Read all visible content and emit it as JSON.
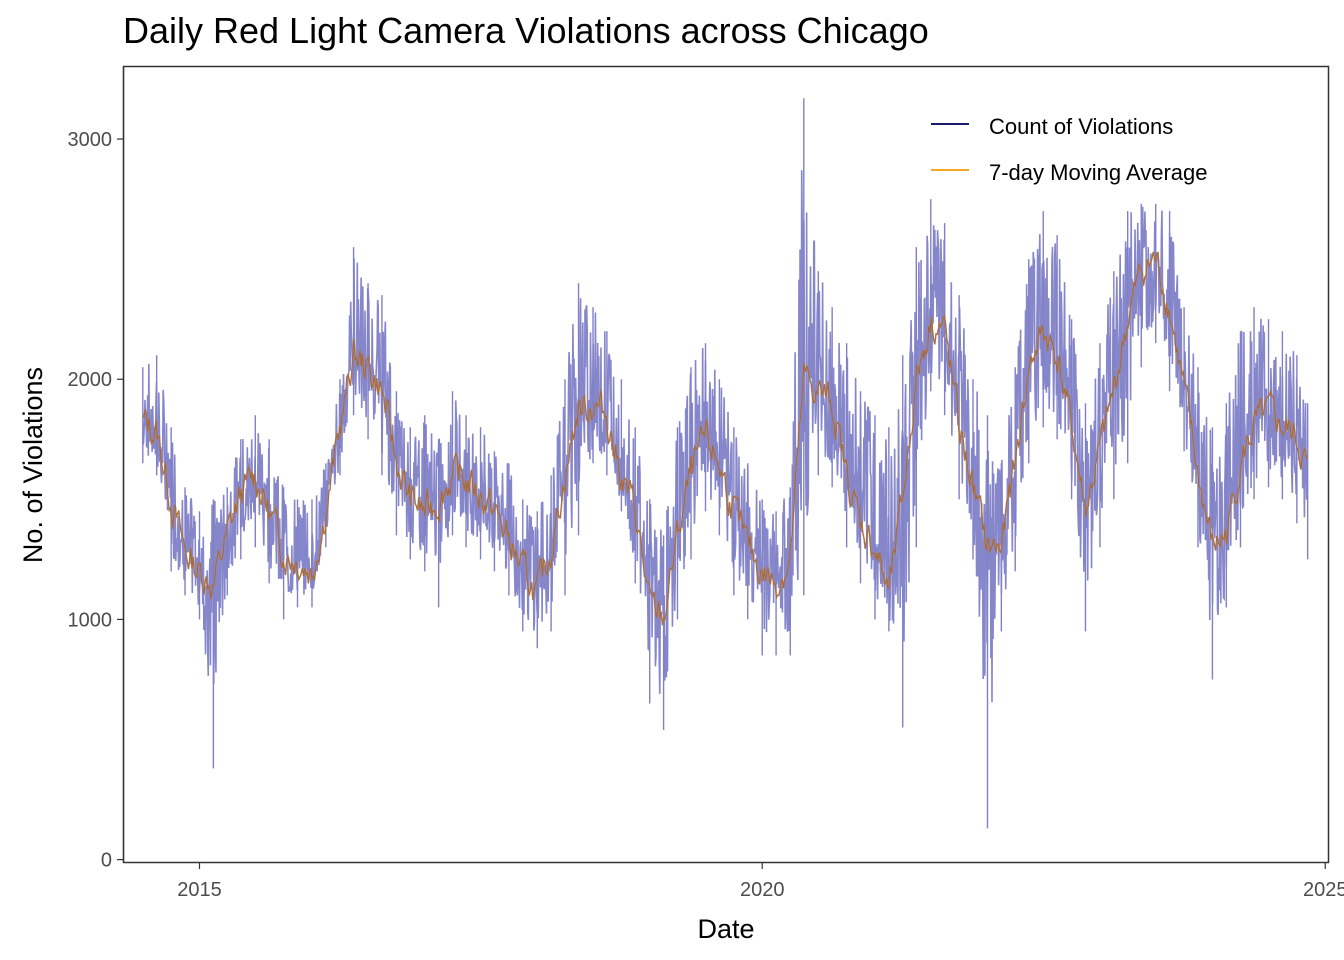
{
  "chart_data": {
    "type": "line",
    "title": "Daily Red Light Camera Violations across Chicago",
    "xlabel": "Date",
    "ylabel": "No. of Violations",
    "xlim": [
      "2014-05-01",
      "2025-01-10"
    ],
    "ylim": [
      -10,
      3300
    ],
    "x_ticks": [
      "2015",
      "2020",
      "2025"
    ],
    "y_ticks": [
      0,
      1000,
      2000,
      3000
    ],
    "grid": false,
    "legend_position": "top-right",
    "colors": {
      "count": "#8080c8",
      "count_legend": "#1a1a6e",
      "average": "#f5a623",
      "average_overlay": "#8b5a50"
    },
    "series": [
      {
        "name": "Count of Violations",
        "x": [
          "2014-07-01",
          "2014-08-15",
          "2014-10-01",
          "2014-11-15",
          "2015-01-01",
          "2015-02-15",
          "2015-04-01",
          "2015-05-15",
          "2015-07-01",
          "2015-08-15",
          "2015-10-01",
          "2015-11-15",
          "2016-01-01",
          "2016-02-15",
          "2016-04-01",
          "2016-05-15",
          "2016-07-01",
          "2016-08-15",
          "2016-10-01",
          "2016-11-15",
          "2017-01-01",
          "2017-02-15",
          "2017-04-01",
          "2017-05-15",
          "2017-07-01",
          "2017-08-15",
          "2017-10-01",
          "2017-11-15",
          "2018-01-01",
          "2018-02-15",
          "2018-04-01",
          "2018-05-15",
          "2018-07-01",
          "2018-08-15",
          "2018-10-01",
          "2018-11-15",
          "2019-01-01",
          "2019-02-15",
          "2019-04-01",
          "2019-05-15",
          "2019-07-01",
          "2019-08-15",
          "2019-10-01",
          "2019-11-15",
          "2020-01-01",
          "2020-02-15",
          "2020-04-01",
          "2020-05-15",
          "2020-07-01",
          "2020-08-15",
          "2020-10-01",
          "2020-11-15",
          "2021-01-01",
          "2021-02-15",
          "2021-04-01",
          "2021-05-15",
          "2021-07-01",
          "2021-08-15",
          "2021-10-01",
          "2021-11-15",
          "2022-01-01",
          "2022-02-15",
          "2022-04-01",
          "2022-05-15",
          "2022-07-01",
          "2022-08-15",
          "2022-10-01",
          "2022-11-15",
          "2023-01-01",
          "2023-02-15",
          "2023-04-01",
          "2023-05-15",
          "2023-07-01",
          "2023-08-15",
          "2023-10-01",
          "2023-11-15",
          "2024-01-01",
          "2024-02-15",
          "2024-04-01",
          "2024-05-15",
          "2024-07-01",
          "2024-08-15",
          "2024-10-01",
          "2024-11-05"
        ],
        "min": [
          1650,
          1600,
          1200,
          1100,
          1000,
          380,
          1100,
          1250,
          1300,
          1150,
          1000,
          1050,
          1050,
          1300,
          1600,
          1850,
          1750,
          1600,
          1350,
          1250,
          1200,
          1050,
          1350,
          1300,
          1250,
          1200,
          1100,
          950,
          880,
          950,
          1100,
          1350,
          1650,
          1600,
          1450,
          1150,
          650,
          540,
          1000,
          1250,
          1450,
          1350,
          1100,
          1000,
          850,
          850,
          850,
          1100,
          1600,
          1550,
          1300,
          1150,
          1000,
          950,
          550,
          1300,
          1950,
          1850,
          1500,
          1250,
          130,
          950,
          1200,
          1650,
          1800,
          1750,
          1500,
          950,
          1300,
          1500,
          1650,
          2050,
          2150,
          1950,
          1700,
          1300,
          750,
          1050,
          1300,
          1500,
          1550,
          1500,
          1400,
          1250
        ],
        "max": [
          2050,
          2100,
          1800,
          1550,
          1450,
          1500,
          1550,
          1750,
          1850,
          1750,
          1550,
          1500,
          1500,
          1650,
          2000,
          2550,
          2400,
          2350,
          1950,
          1800,
          1850,
          1750,
          1950,
          1850,
          1800,
          1700,
          1650,
          1500,
          1450,
          1600,
          2000,
          2400,
          2300,
          2200,
          2000,
          1800,
          1500,
          1350,
          1800,
          2050,
          2150,
          2000,
          1800,
          1650,
          1500,
          1450,
          1550,
          3170,
          2450,
          2300,
          2150,
          1950,
          1850,
          1800,
          2100,
          2550,
          2750,
          2650,
          2350,
          2000,
          1850,
          1650,
          2050,
          2500,
          2700,
          2600,
          2250,
          1900,
          2150,
          2450,
          2700,
          2730,
          2730,
          2700,
          2300,
          2050,
          1800,
          1900,
          2200,
          2300,
          2250,
          2200,
          2100,
          1900
        ],
        "values": [
          1820,
          1780,
          1500,
          1280,
          1200,
          1150,
          1350,
          1520,
          1600,
          1450,
          1280,
          1250,
          1200,
          1450,
          1800,
          2100,
          2050,
          1950,
          1650,
          1500,
          1450,
          1500,
          1600,
          1580,
          1520,
          1450,
          1330,
          1200,
          1100,
          1300,
          1600,
          1880,
          1900,
          1850,
          1600,
          1450,
          1050,
          1000,
          1350,
          1600,
          1750,
          1650,
          1450,
          1300,
          1200,
          1150,
          1250,
          2000,
          1950,
          1900,
          1600,
          1400,
          1300,
          1100,
          1500,
          2000,
          2250,
          2200,
          1800,
          1550,
          1300,
          1300,
          1650,
          2050,
          2200,
          2100,
          1800,
          1450,
          1700,
          1950,
          2250,
          2450,
          2500,
          2300,
          1950,
          1600,
          1300,
          1350,
          1650,
          1800,
          1850,
          1800,
          1750,
          1620
        ]
      },
      {
        "name": "7-day Moving Average",
        "x": [
          "2014-07-01",
          "2014-08-15",
          "2014-10-01",
          "2014-11-15",
          "2015-01-01",
          "2015-02-15",
          "2015-04-01",
          "2015-05-15",
          "2015-07-01",
          "2015-08-15",
          "2015-10-01",
          "2015-11-15",
          "2016-01-01",
          "2016-02-15",
          "2016-04-01",
          "2016-05-15",
          "2016-07-01",
          "2016-08-15",
          "2016-10-01",
          "2016-11-15",
          "2017-01-01",
          "2017-02-15",
          "2017-04-01",
          "2017-05-15",
          "2017-07-01",
          "2017-08-15",
          "2017-10-01",
          "2017-11-15",
          "2018-01-01",
          "2018-02-15",
          "2018-04-01",
          "2018-05-15",
          "2018-07-01",
          "2018-08-15",
          "2018-10-01",
          "2018-11-15",
          "2019-01-01",
          "2019-02-15",
          "2019-04-01",
          "2019-05-15",
          "2019-07-01",
          "2019-08-15",
          "2019-10-01",
          "2019-11-15",
          "2020-01-01",
          "2020-02-15",
          "2020-04-01",
          "2020-05-15",
          "2020-07-01",
          "2020-08-15",
          "2020-10-01",
          "2020-11-15",
          "2021-01-01",
          "2021-02-15",
          "2021-04-01",
          "2021-05-15",
          "2021-07-01",
          "2021-08-15",
          "2021-10-01",
          "2021-11-15",
          "2022-01-01",
          "2022-02-15",
          "2022-04-01",
          "2022-05-15",
          "2022-07-01",
          "2022-08-15",
          "2022-10-01",
          "2022-11-15",
          "2023-01-01",
          "2023-02-15",
          "2023-04-01",
          "2023-05-15",
          "2023-07-01",
          "2023-08-15",
          "2023-10-01",
          "2023-11-15",
          "2024-01-01",
          "2024-02-15",
          "2024-04-01",
          "2024-05-15",
          "2024-07-01",
          "2024-08-15",
          "2024-10-01",
          "2024-11-05"
        ],
        "values": [
          1820,
          1780,
          1500,
          1280,
          1200,
          1150,
          1350,
          1520,
          1600,
          1450,
          1280,
          1250,
          1200,
          1450,
          1800,
          2100,
          2050,
          1950,
          1650,
          1500,
          1450,
          1500,
          1600,
          1580,
          1520,
          1450,
          1330,
          1200,
          1100,
          1300,
          1600,
          1880,
          1900,
          1850,
          1600,
          1450,
          1050,
          1000,
          1350,
          1600,
          1750,
          1650,
          1450,
          1300,
          1200,
          1150,
          1250,
          2000,
          1950,
          1900,
          1600,
          1400,
          1300,
          1100,
          1500,
          2000,
          2250,
          2200,
          1800,
          1550,
          1300,
          1300,
          1650,
          2050,
          2200,
          2100,
          1800,
          1450,
          1700,
          1950,
          2250,
          2450,
          2500,
          2300,
          1950,
          1600,
          1300,
          1350,
          1650,
          1800,
          1850,
          1800,
          1750,
          1620
        ]
      }
    ]
  }
}
